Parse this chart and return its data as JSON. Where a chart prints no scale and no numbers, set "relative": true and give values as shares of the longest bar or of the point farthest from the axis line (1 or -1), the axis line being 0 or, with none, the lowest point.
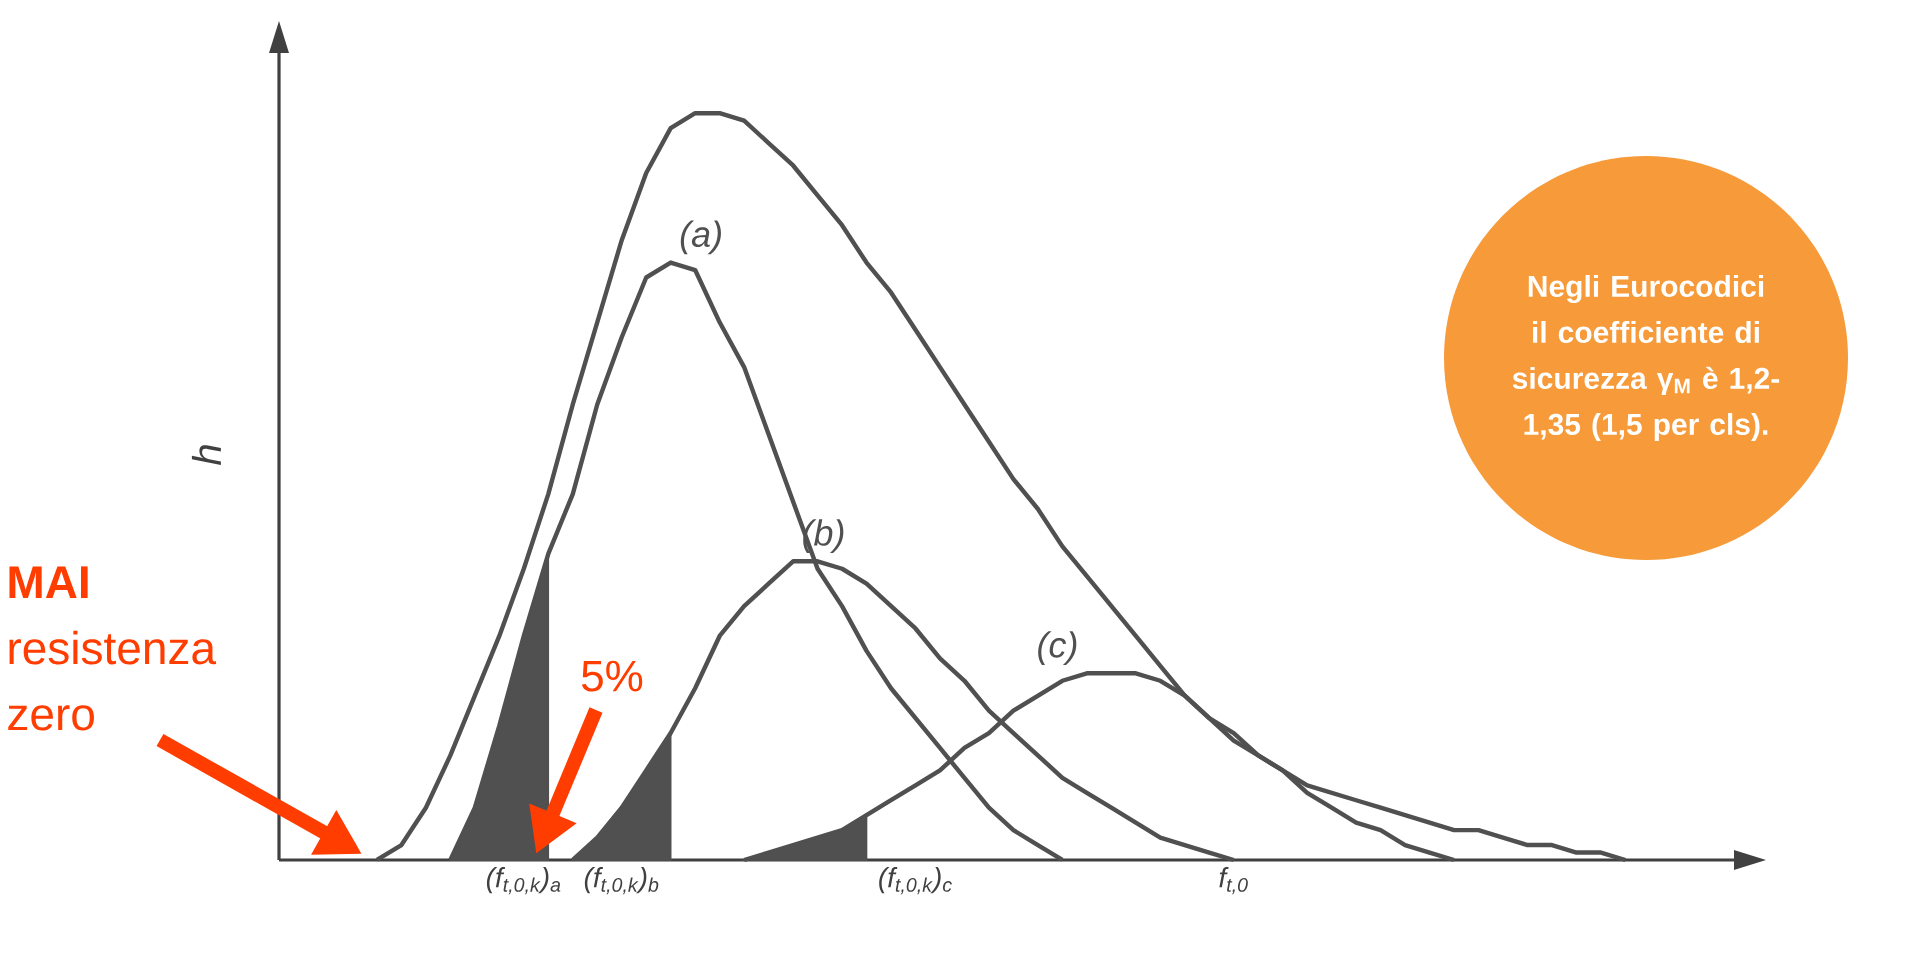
{
  "chart_data": {
    "type": "line",
    "relative": true,
    "ylabel": "h",
    "categories": [
      null,
      null,
      null,
      null,
      null,
      null,
      null,
      null,
      null,
      null,
      "(f$_{t,0,k}$)$_{a}$",
      null,
      null,
      null,
      "(f$_{t,0,k}$)$_{b}$",
      null,
      null,
      null,
      null,
      null,
      null,
      null,
      null,
      null,
      null,
      null,
      "(f$_{t,0,k}$)$_{c}$",
      null,
      null,
      null,
      null,
      null,
      null,
      null,
      null,
      null,
      null,
      null,
      null,
      "f$_{t,0}$",
      null,
      null,
      null,
      null,
      null,
      null,
      null,
      null,
      null,
      null,
      null,
      null,
      null,
      null,
      null,
      null,
      null
    ],
    "series": [
      {
        "color": "#505050",
        "values": [
          null,
          null,
          null,
          null,
          0,
          0.02,
          0.07,
          0.14,
          0.22,
          0.3,
          0.39,
          0.49,
          0.61,
          0.72,
          0.83,
          0.92,
          0.98,
          1,
          1,
          0.99,
          0.96,
          0.93,
          0.89,
          0.85,
          0.8,
          0.76,
          0.71,
          0.66,
          0.61,
          0.56,
          0.51,
          0.47,
          0.42,
          0.38,
          0.34,
          0.3,
          0.26,
          0.22,
          0.19,
          0.16,
          0.14,
          0.12,
          0.1,
          0.09,
          0.08,
          0.07,
          0.06,
          0.05,
          0.04,
          0.04,
          0.03,
          0.02,
          0.02,
          0.01,
          0.01,
          0,
          null
        ]
      },
      {
        "name": "(a)",
        "color": "#505050",
        "values": [
          null,
          null,
          null,
          null,
          null,
          null,
          null,
          0,
          0.07,
          0.18,
          0.3,
          0.41,
          0.49,
          0.61,
          0.7,
          0.78,
          0.8,
          0.79,
          0.72,
          0.66,
          0.57,
          0.48,
          0.39,
          0.34,
          0.28,
          0.23,
          0.19,
          0.15,
          0.11,
          0.07,
          0.04,
          0.02,
          0,
          null,
          null,
          null,
          null,
          null,
          null,
          null,
          null,
          null,
          null,
          null,
          null,
          null,
          null,
          null,
          null,
          null,
          null,
          null,
          null,
          null,
          null,
          null,
          null
        ]
      },
      {
        "name": "(b)",
        "color": "#505050",
        "values": [
          null,
          null,
          null,
          null,
          null,
          null,
          null,
          null,
          null,
          null,
          null,
          null,
          0,
          0.03,
          0.07,
          0.12,
          0.17,
          0.23,
          0.3,
          0.34,
          0.37,
          0.4,
          0.4,
          0.39,
          0.37,
          0.34,
          0.31,
          0.27,
          0.24,
          0.2,
          0.17,
          0.14,
          0.11,
          0.09,
          0.07,
          0.05,
          0.03,
          0.02,
          0.01,
          0,
          null,
          null,
          null,
          null,
          null,
          null,
          null,
          null,
          null,
          null,
          null,
          null,
          null,
          null,
          null,
          null,
          null
        ]
      },
      {
        "name": "(c)",
        "color": "#505050",
        "values": [
          null,
          null,
          null,
          null,
          null,
          null,
          null,
          null,
          null,
          null,
          null,
          null,
          null,
          null,
          null,
          null,
          null,
          null,
          null,
          0,
          0.01,
          0.02,
          0.03,
          0.04,
          0.06,
          0.08,
          0.1,
          0.12,
          0.15,
          0.17,
          0.2,
          0.22,
          0.24,
          0.25,
          0.25,
          0.25,
          0.24,
          0.22,
          0.19,
          0.17,
          0.14,
          0.12,
          0.09,
          0.07,
          0.05,
          0.04,
          0.02,
          0.01,
          0,
          null,
          null,
          null,
          null,
          null,
          null,
          null,
          null
        ]
      },
      {
        "type": "area",
        "color": "#505050",
        "values": [
          null,
          null,
          null,
          null,
          null,
          null,
          null,
          0,
          0.07,
          0.18,
          0.3,
          0.41,
          null,
          null,
          null,
          null,
          null,
          null,
          null,
          null,
          null,
          null,
          null,
          null,
          null,
          null,
          null,
          null,
          null,
          null,
          null,
          null,
          null,
          null,
          null,
          null,
          null,
          null,
          null,
          null,
          null,
          null,
          null,
          null,
          null,
          null,
          null,
          null,
          null,
          null,
          null,
          null,
          null,
          null,
          null,
          null,
          null
        ]
      },
      {
        "type": "area",
        "color": "#505050",
        "values": [
          null,
          null,
          null,
          null,
          null,
          null,
          null,
          null,
          null,
          null,
          null,
          null,
          0,
          0.03,
          0.07,
          0.12,
          0.17,
          null,
          null,
          null,
          null,
          null,
          null,
          null,
          null,
          null,
          null,
          null,
          null,
          null,
          null,
          null,
          null,
          null,
          null,
          null,
          null,
          null,
          null,
          null,
          null,
          null,
          null,
          null,
          null,
          null,
          null,
          null,
          null,
          null,
          null,
          null,
          null,
          null,
          null,
          null,
          null
        ]
      },
      {
        "type": "area",
        "color": "#505050",
        "values": [
          null,
          null,
          null,
          null,
          null,
          null,
          null,
          null,
          null,
          null,
          null,
          null,
          null,
          null,
          null,
          null,
          null,
          null,
          null,
          0,
          0.01,
          0.02,
          0.03,
          0.04,
          0.06,
          null,
          null,
          null,
          null,
          null,
          null,
          null,
          null,
          null,
          null,
          null,
          null,
          null,
          null,
          null,
          null,
          null,
          null,
          null,
          null,
          null,
          null,
          null,
          null,
          null,
          null,
          null,
          null,
          null,
          null,
          null,
          null
        ]
      }
    ],
    "annotations": [
      "**MAI** resistenza zero",
      "5%",
      "Negli Eurocodici il coefficiente di sicurezza γ$_{M}$ è 1,2-1,35 (1,5 per cls)."
    ]
  }
}
